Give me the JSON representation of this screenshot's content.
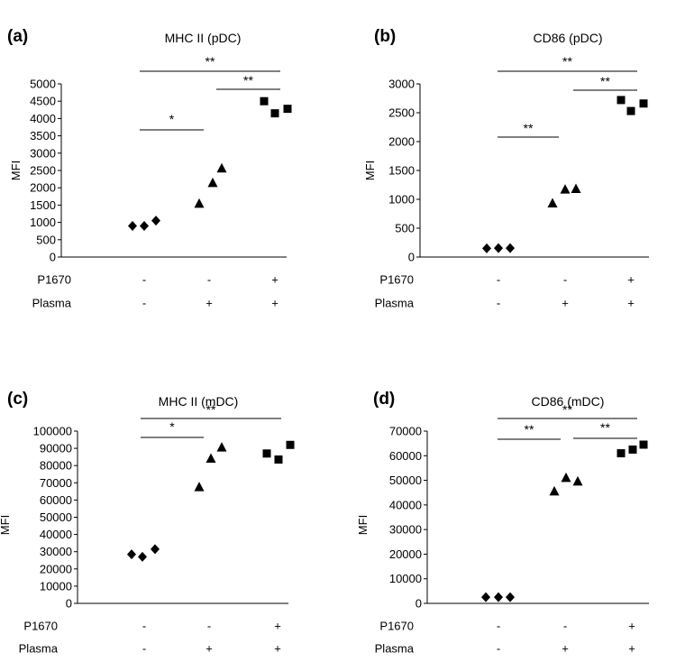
{
  "figure": {
    "condition_row_labels": [
      "P1670",
      "Plasma"
    ]
  },
  "chart_data": [
    {
      "panel": "(a)",
      "type": "scatter",
      "title": "MHC II (pDC)",
      "ylabel": "MFI",
      "ylim": [
        0,
        5000
      ],
      "yticks": [
        0,
        500,
        1000,
        1500,
        2000,
        2500,
        3000,
        3500,
        4000,
        4500,
        5000
      ],
      "conditions": [
        {
          "P1670": "-",
          "Plasma": "-"
        },
        {
          "P1670": "-",
          "Plasma": "+"
        },
        {
          "P1670": "+",
          "Plasma": "+"
        }
      ],
      "series": [
        {
          "name": "P1670- Plasma-",
          "marker": "diamond",
          "values": [
            900,
            900,
            1050
          ]
        },
        {
          "name": "P1670- Plasma+",
          "marker": "triangle",
          "values": [
            1540,
            2140,
            2560
          ]
        },
        {
          "name": "P1670+ Plasma+",
          "marker": "square",
          "values": [
            4500,
            4150,
            4280
          ]
        }
      ],
      "significance": [
        {
          "from": 0,
          "to": 1,
          "label": "*"
        },
        {
          "from": 1,
          "to": 2,
          "label": "**"
        },
        {
          "from": 0,
          "to": 2,
          "label": "**"
        }
      ]
    },
    {
      "panel": "(b)",
      "type": "scatter",
      "title": "CD86 (pDC)",
      "ylabel": "MFI",
      "ylim": [
        0,
        3000
      ],
      "yticks": [
        0,
        500,
        1000,
        1500,
        2000,
        2500,
        3000
      ],
      "conditions": [
        {
          "P1670": "-",
          "Plasma": "-"
        },
        {
          "P1670": "-",
          "Plasma": "+"
        },
        {
          "P1670": "+",
          "Plasma": "+"
        }
      ],
      "series": [
        {
          "name": "P1670- Plasma-",
          "marker": "diamond",
          "values": [
            150,
            155,
            155
          ]
        },
        {
          "name": "P1670- Plasma+",
          "marker": "triangle",
          "values": [
            930,
            1170,
            1180
          ]
        },
        {
          "name": "P1670+ Plasma+",
          "marker": "square",
          "values": [
            2720,
            2530,
            2660
          ]
        }
      ],
      "significance": [
        {
          "from": 0,
          "to": 1,
          "label": "**"
        },
        {
          "from": 1,
          "to": 2,
          "label": "**"
        },
        {
          "from": 0,
          "to": 2,
          "label": "**"
        }
      ]
    },
    {
      "panel": "(c)",
      "type": "scatter",
      "title": "MHC II (mDC)",
      "ylabel": "MFI",
      "ylim": [
        0,
        100000
      ],
      "yticks": [
        0,
        10000,
        20000,
        30000,
        40000,
        50000,
        60000,
        70000,
        80000,
        90000,
        100000
      ],
      "conditions": [
        {
          "P1670": "-",
          "Plasma": "-"
        },
        {
          "P1670": "-",
          "Plasma": "+"
        },
        {
          "P1670": "+",
          "Plasma": "+"
        }
      ],
      "series": [
        {
          "name": "P1670- Plasma-",
          "marker": "diamond",
          "values": [
            28500,
            27000,
            31500
          ]
        },
        {
          "name": "P1670- Plasma+",
          "marker": "triangle",
          "values": [
            67500,
            84000,
            90500
          ]
        },
        {
          "name": "P1670+ Plasma+",
          "marker": "square",
          "values": [
            87000,
            83500,
            92000
          ]
        }
      ],
      "significance": [
        {
          "from": 0,
          "to": 1,
          "label": "*"
        },
        {
          "from": 0,
          "to": 2,
          "label": "**"
        }
      ]
    },
    {
      "panel": "(d)",
      "type": "scatter",
      "title": "CD86 (mDC)",
      "ylabel": "MFI",
      "ylim": [
        0,
        70000
      ],
      "yticks": [
        0,
        10000,
        20000,
        30000,
        40000,
        50000,
        60000,
        70000
      ],
      "conditions": [
        {
          "P1670": "-",
          "Plasma": "-"
        },
        {
          "P1670": "-",
          "Plasma": "+"
        },
        {
          "P1670": "+",
          "Plasma": "+"
        }
      ],
      "series": [
        {
          "name": "P1670- Plasma-",
          "marker": "diamond",
          "values": [
            2500,
            2500,
            2500
          ]
        },
        {
          "name": "P1670- Plasma+",
          "marker": "triangle",
          "values": [
            45500,
            51000,
            49500
          ]
        },
        {
          "name": "P1670+ Plasma+",
          "marker": "square",
          "values": [
            61000,
            62500,
            64500
          ]
        }
      ],
      "significance": [
        {
          "from": 0,
          "to": 1,
          "label": "**"
        },
        {
          "from": 1,
          "to": 2,
          "label": "**"
        },
        {
          "from": 0,
          "to": 2,
          "label": "**"
        }
      ]
    }
  ]
}
